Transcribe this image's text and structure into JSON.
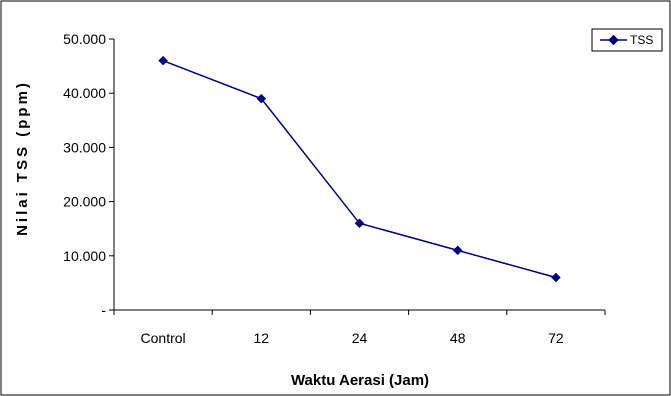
{
  "chart_data": {
    "type": "line",
    "categories": [
      "Control",
      "12",
      "24",
      "48",
      "72"
    ],
    "series": [
      {
        "name": "TSS",
        "values": [
          46000,
          39000,
          16000,
          11000,
          6000
        ]
      }
    ],
    "xlabel": "Waktu Aerasi (Jam)",
    "ylabel": "Nilai TSS (ppm)",
    "ylim": [
      0,
      50000
    ],
    "ytick_values": [
      0,
      10000,
      20000,
      30000,
      40000,
      50000
    ],
    "ytick_labels": [
      "-",
      "10.000",
      "20.000",
      "30.000",
      "40.000",
      "50.000"
    ],
    "grid": false,
    "legend": "top-right",
    "colors": {
      "series": "#000080",
      "frame": "#000000"
    }
  }
}
